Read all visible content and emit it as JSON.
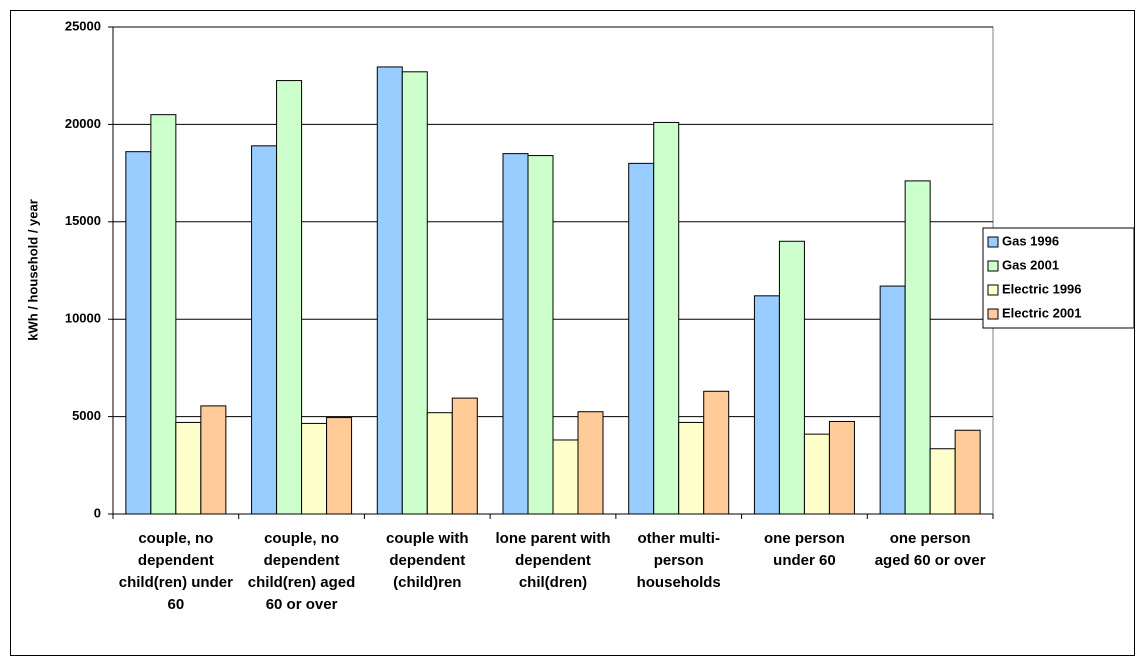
{
  "chart_data": {
    "type": "bar",
    "y_label": "kWh / household / year",
    "categories": [
      "couple, no dependent child(ren) under 60",
      "couple, no dependent child(ren) aged 60 or over",
      "couple with dependent (child)ren",
      "lone parent with dependent chil(dren)",
      "other multi-person households",
      "one person under 60",
      "one person aged 60 or over"
    ],
    "series": [
      {
        "name": "Gas 1996",
        "color": "#99ccff",
        "values": [
          18600,
          18900,
          22950,
          18500,
          18000,
          11200,
          11700
        ]
      },
      {
        "name": "Gas 2001",
        "color": "#ccffcc",
        "values": [
          20500,
          22250,
          22700,
          18400,
          20100,
          14000,
          17100
        ]
      },
      {
        "name": "Electric 1996",
        "color": "#ffffcc",
        "values": [
          4700,
          4650,
          5200,
          3800,
          4700,
          4100,
          3350
        ]
      },
      {
        "name": "Electric 2001",
        "color": "#ffcc99",
        "values": [
          5550,
          4950,
          5950,
          5250,
          6300,
          4750,
          4300
        ]
      }
    ],
    "ylim": [
      0,
      25000
    ],
    "yticks": [
      0,
      5000,
      10000,
      15000,
      20000,
      25000
    ],
    "grid": true,
    "legend": "right"
  }
}
